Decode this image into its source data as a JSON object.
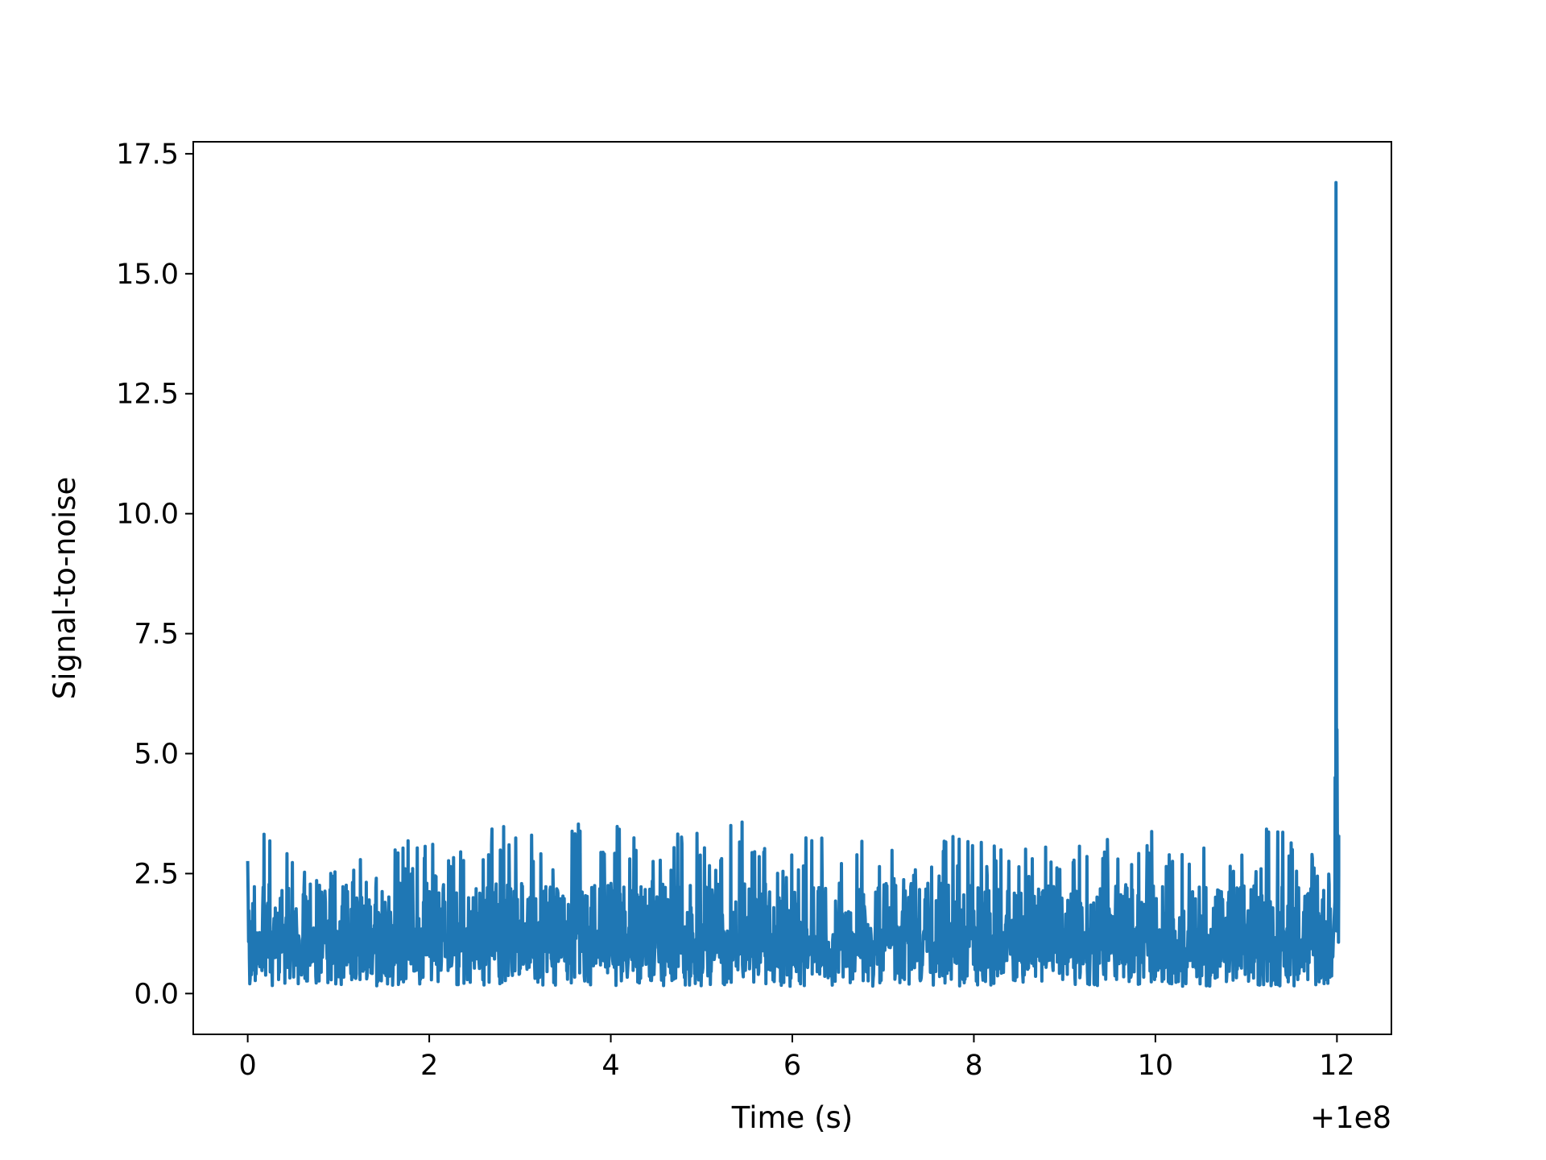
{
  "chart_data": {
    "type": "line",
    "title": "",
    "xlabel": "Time (s)",
    "ylabel": "Signal-to-noise",
    "x_offset_label": "+1e8",
    "xlim": [
      -0.6,
      12.6
    ],
    "ylim": [
      -0.85,
      17.75
    ],
    "xticks": [
      0,
      2,
      4,
      6,
      8,
      10,
      12
    ],
    "xtick_labels": [
      "0",
      "2",
      "4",
      "6",
      "8",
      "10",
      "12"
    ],
    "yticks": [
      0.0,
      2.5,
      5.0,
      7.5,
      10.0,
      12.5,
      15.0,
      17.5
    ],
    "ytick_labels": [
      "0.0",
      "2.5",
      "5.0",
      "7.5",
      "10.0",
      "12.5",
      "15.0",
      "17.5"
    ],
    "grid": false,
    "color": "#1f77b4",
    "series": [
      {
        "x": [
          0.0,
          0.02,
          0.05,
          0.1,
          0.15,
          0.2,
          0.3,
          0.4,
          0.5,
          0.6,
          0.7,
          0.8,
          1.0,
          1.2,
          1.4,
          1.6,
          1.8,
          2.0,
          2.2,
          2.4,
          2.6,
          2.75,
          2.9,
          3.1,
          3.3,
          3.5,
          3.57,
          3.7,
          3.9,
          4.1,
          4.3,
          4.5,
          4.7,
          4.9,
          5.1,
          5.3,
          5.37,
          5.5,
          5.7,
          5.9,
          6.1,
          6.3,
          6.5,
          6.65,
          6.8,
          7.0,
          7.2,
          7.4,
          7.6,
          7.8,
          8.0,
          8.2,
          8.4,
          8.6,
          8.8,
          9.0,
          9.2,
          9.4,
          9.6,
          9.8,
          10.0,
          10.2,
          10.4,
          10.6,
          10.75,
          10.9,
          11.1,
          11.3,
          11.5,
          11.7,
          11.9,
          11.96,
          11.98,
          11.99,
          12.0,
          12.01,
          12.02
        ],
        "y": [
          3.0,
          3.4,
          3.7,
          3.9,
          3.5,
          3.2,
          3.3,
          3.0,
          2.8,
          2.6,
          2.7,
          2.5,
          2.8,
          2.9,
          3.1,
          3.4,
          3.2,
          3.2,
          2.9,
          3.0,
          3.1,
          3.7,
          3.4,
          3.7,
          3.3,
          3.4,
          3.95,
          3.3,
          3.8,
          3.6,
          3.2,
          3.0,
          3.5,
          3.7,
          3.3,
          3.3,
          4.2,
          3.5,
          3.1,
          3.0,
          3.2,
          3.4,
          3.3,
          3.85,
          3.0,
          3.2,
          3.1,
          2.9,
          3.2,
          3.3,
          3.7,
          3.1,
          3.2,
          3.0,
          3.1,
          3.1,
          3.2,
          3.4,
          3.1,
          3.2,
          3.5,
          3.3,
          3.2,
          3.1,
          3.5,
          3.0,
          3.3,
          3.6,
          3.2,
          3.0,
          2.7,
          2.9,
          4.5,
          16.9,
          5.5,
          3.3,
          2.5
        ]
      }
    ]
  }
}
